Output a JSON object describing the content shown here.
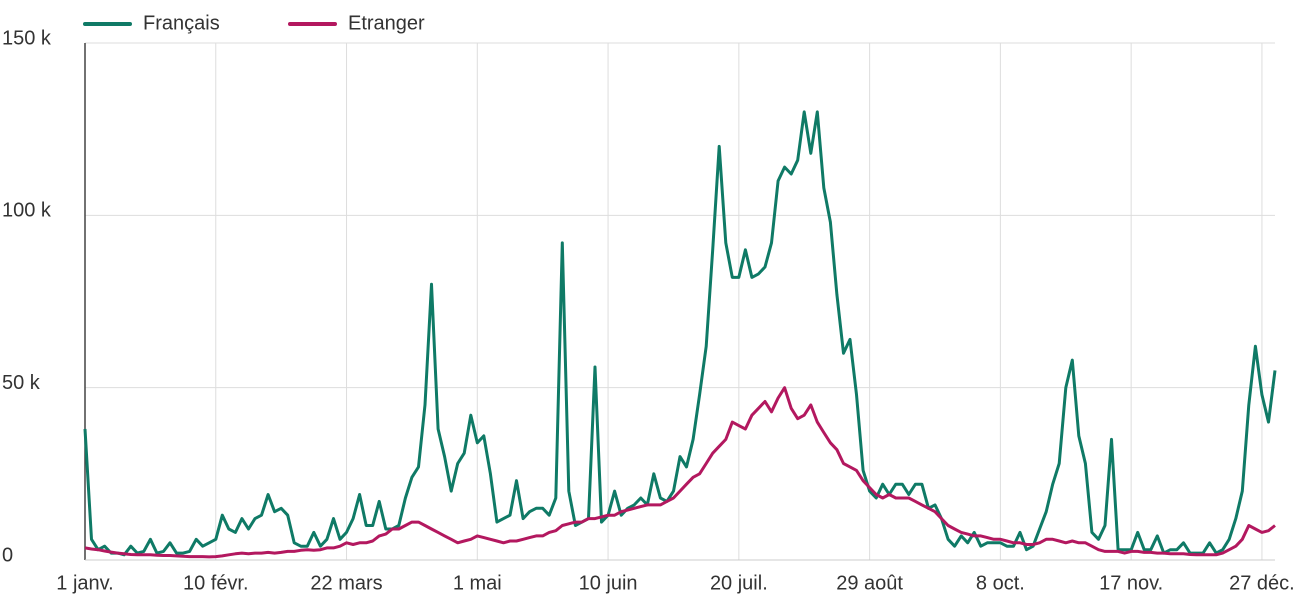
{
  "chart_data": {
    "type": "line",
    "categories": [
      "1 janv.",
      null,
      null,
      null,
      null,
      null,
      null,
      null,
      null,
      null,
      null,
      null,
      null,
      null,
      null,
      null,
      null,
      null,
      null,
      null,
      "10 févr.",
      null,
      null,
      null,
      null,
      null,
      null,
      null,
      null,
      null,
      null,
      null,
      null,
      null,
      null,
      null,
      null,
      null,
      null,
      null,
      "22 mars",
      null,
      null,
      null,
      null,
      null,
      null,
      null,
      null,
      null,
      null,
      null,
      null,
      null,
      null,
      null,
      null,
      null,
      null,
      null,
      "1 mai",
      null,
      null,
      null,
      null,
      null,
      null,
      null,
      null,
      null,
      null,
      null,
      null,
      null,
      null,
      null,
      null,
      null,
      null,
      null,
      "10 juin",
      null,
      null,
      null,
      null,
      null,
      null,
      null,
      null,
      null,
      null,
      null,
      null,
      null,
      null,
      null,
      null,
      null,
      null,
      null,
      "20 juil.",
      null,
      null,
      null,
      null,
      null,
      null,
      null,
      null,
      null,
      null,
      null,
      null,
      null,
      null,
      null,
      null,
      null,
      null,
      null,
      "29 août",
      null,
      null,
      null,
      null,
      null,
      null,
      null,
      null,
      null,
      null,
      null,
      null,
      null,
      null,
      null,
      null,
      null,
      null,
      null,
      "8 oct.",
      null,
      null,
      null,
      null,
      null,
      null,
      null,
      null,
      null,
      null,
      null,
      null,
      null,
      null,
      null,
      null,
      null,
      null,
      null,
      "17 nov.",
      null,
      null,
      null,
      null,
      null,
      null,
      null,
      null,
      null,
      null,
      null,
      null,
      null,
      null,
      null,
      null,
      null,
      null,
      null,
      "27 déc.",
      null,
      null
    ],
    "series": [
      {
        "name": "Français",
        "color": "#0f7a66",
        "values": [
          38000,
          6000,
          3000,
          4000,
          2000,
          2000,
          1500,
          4000,
          2000,
          2500,
          6000,
          2000,
          2500,
          5000,
          2000,
          2000,
          2500,
          6000,
          4000,
          5000,
          6000,
          13000,
          9000,
          8000,
          12000,
          9000,
          12000,
          13000,
          19000,
          14000,
          15000,
          13000,
          5000,
          4000,
          4000,
          8000,
          4000,
          6000,
          12000,
          6000,
          8000,
          12000,
          19000,
          10000,
          10000,
          17000,
          9000,
          9000,
          10000,
          18000,
          24000,
          27000,
          45000,
          80000,
          38000,
          30000,
          20000,
          28000,
          31000,
          42000,
          34000,
          36000,
          25000,
          11000,
          12000,
          13000,
          23000,
          12000,
          14000,
          15000,
          15000,
          13000,
          18000,
          92000,
          20000,
          10000,
          11000,
          12000,
          56000,
          11000,
          13000,
          20000,
          13000,
          15000,
          16000,
          18000,
          16000,
          25000,
          18000,
          17000,
          20000,
          30000,
          27000,
          35000,
          48000,
          62000,
          90000,
          120000,
          92000,
          82000,
          82000,
          90000,
          82000,
          83000,
          85000,
          92000,
          110000,
          114000,
          112000,
          116000,
          130000,
          118000,
          130000,
          108000,
          98000,
          77000,
          60000,
          64000,
          48000,
          26000,
          20000,
          18000,
          22000,
          19000,
          22000,
          22000,
          19000,
          22000,
          22000,
          15000,
          16000,
          12000,
          6000,
          4000,
          7000,
          5000,
          8000,
          4000,
          5000,
          5000,
          5000,
          4000,
          4000,
          8000,
          3000,
          4000,
          9000,
          14000,
          22000,
          28000,
          50000,
          58000,
          36000,
          28000,
          8000,
          6000,
          10000,
          35000,
          3000,
          3000,
          3000,
          8000,
          3000,
          3000,
          7000,
          2000,
          3000,
          3000,
          5000,
          2000,
          2000,
          2000,
          5000,
          2000,
          3000,
          6000,
          12000,
          20000,
          45000,
          62000,
          48000,
          40000,
          55000
        ]
      },
      {
        "name": "Etranger",
        "color": "#b3185f",
        "values": [
          3500,
          3200,
          3000,
          2600,
          2300,
          2000,
          1800,
          1600,
          1500,
          1500,
          1500,
          1400,
          1300,
          1300,
          1200,
          1100,
          1000,
          1000,
          1000,
          900,
          1000,
          1200,
          1500,
          1800,
          2000,
          1800,
          2000,
          2000,
          2200,
          2000,
          2200,
          2500,
          2500,
          2800,
          3000,
          2800,
          3000,
          3500,
          3500,
          4000,
          5000,
          4500,
          5000,
          5000,
          5500,
          7000,
          7500,
          9000,
          9000,
          10000,
          11000,
          11000,
          10000,
          9000,
          8000,
          7000,
          6000,
          5000,
          5500,
          6000,
          7000,
          6500,
          6000,
          5500,
          5000,
          5500,
          5500,
          6000,
          6500,
          7000,
          7000,
          8000,
          8500,
          10000,
          10500,
          11000,
          11000,
          12000,
          12000,
          12500,
          13000,
          13000,
          14000,
          14500,
          15000,
          15500,
          16000,
          16000,
          16000,
          17000,
          18000,
          20000,
          22000,
          24000,
          25000,
          28000,
          31000,
          33000,
          35000,
          40000,
          39000,
          38000,
          42000,
          44000,
          46000,
          43000,
          47000,
          50000,
          44000,
          41000,
          42000,
          45000,
          40000,
          37000,
          34000,
          32000,
          28000,
          27000,
          26000,
          23000,
          21000,
          19000,
          18000,
          19000,
          18000,
          18000,
          18000,
          17000,
          16000,
          15000,
          14000,
          12000,
          10000,
          9000,
          8000,
          7500,
          7000,
          7000,
          6500,
          6000,
          6000,
          5500,
          5000,
          5000,
          4500,
          4500,
          5000,
          6000,
          6000,
          5500,
          5000,
          5500,
          5000,
          5000,
          4000,
          3000,
          2500,
          2500,
          2500,
          2000,
          2500,
          2500,
          2200,
          2200,
          2000,
          2000,
          1800,
          1800,
          1800,
          1600,
          1500,
          1500,
          1500,
          1500,
          2000,
          3000,
          4000,
          6000,
          10000,
          9000,
          8000,
          8500,
          10000
        ]
      }
    ],
    "ylim": [
      0,
      150000
    ],
    "yticks": [
      0,
      {
        "value": 50000,
        "label": "50 k"
      },
      {
        "value": 100000,
        "label": "100 k"
      },
      {
        "value": 150000,
        "label": "150 k"
      }
    ],
    "grid": true
  }
}
